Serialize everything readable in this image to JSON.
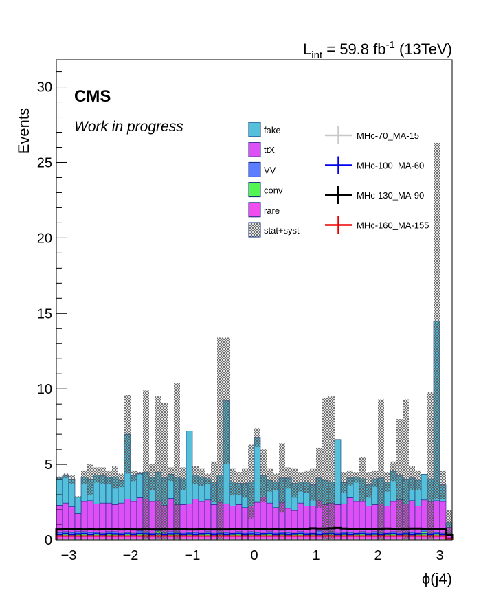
{
  "chart_data": {
    "type": "bar",
    "title": "",
    "lumi": {
      "main": "L",
      "sub": "int",
      "rest": " = 59.8 fb",
      "sup": "-1",
      "energy": " (13TeV)"
    },
    "experiment": "CMS",
    "status_text": "Work in progress",
    "xlabel": "ϕ(j4)",
    "ylabel": "Events",
    "xlim": [
      -3.2,
      3.2
    ],
    "ylim": [
      0,
      31.8
    ],
    "xticks": [
      -3,
      -2,
      -1,
      0,
      1,
      2,
      3
    ],
    "xtick_labels": [
      "−3",
      "−2",
      "−1",
      "0",
      "1",
      "2",
      "3"
    ],
    "yticks": [
      0,
      5,
      10,
      15,
      20,
      25,
      30
    ],
    "ytick_labels": [
      "0",
      "5",
      "10",
      "15",
      "20",
      "25",
      "30"
    ],
    "bins": 64,
    "stack_series": [
      {
        "name": "rare",
        "color": "#f04cf0",
        "values": [
          0.25,
          0.25,
          0.25,
          0.25,
          0.25,
          0.25,
          0.25,
          0.25,
          0.25,
          0.25,
          0.25,
          0.25,
          0.25,
          0.25,
          0.25,
          0.25,
          0.25,
          0.25,
          0.25,
          0.25,
          0.25,
          0.25,
          0.25,
          0.25,
          0.25,
          0.25,
          0.25,
          0.25,
          0.25,
          0.25,
          0.25,
          0.25,
          0.25,
          0.25,
          0.25,
          0.25,
          0.25,
          0.25,
          0.25,
          0.25,
          0.25,
          0.25,
          0.25,
          0.25,
          0.25,
          0.25,
          0.25,
          0.25,
          0.25,
          0.25,
          0.25,
          0.25,
          0.25,
          0.25,
          0.25,
          0.25,
          0.25,
          0.25,
          0.25,
          0.25,
          0.25,
          0.25,
          0.25,
          0.25
        ]
      },
      {
        "name": "conv",
        "color": "#52f552",
        "values": [
          0.1,
          0.2,
          0.15,
          0.1,
          0.2,
          0.1,
          0.15,
          0.1,
          0.2,
          0.1,
          0.1,
          0.15,
          0.1,
          0.2,
          0.15,
          0.1,
          0.35,
          0.15,
          0.1,
          0.2,
          0.1,
          0.1,
          0.15,
          0.1,
          0.2,
          0.1,
          0.1,
          0.15,
          0.1,
          0.2,
          0.1,
          0.1,
          0.15,
          0.1,
          0.2,
          0.1,
          0.1,
          0.15,
          0.1,
          0.2,
          0.1,
          0.1,
          0.15,
          0.1,
          0.2,
          0.1,
          0.1,
          0.15,
          0.1,
          0.2,
          0.1,
          0.1,
          0.15,
          0.1,
          0.2,
          0.1,
          0.1,
          0.15,
          0.1,
          0.3,
          0.1,
          0.15,
          0.1,
          0.1
        ]
      },
      {
        "name": "VV",
        "color": "#5c7dff",
        "values": [
          0.15,
          0.1,
          0.1,
          0.2,
          0.1,
          0.15,
          0.1,
          0.1,
          0.1,
          0.2,
          0.1,
          0.1,
          0.1,
          0.15,
          0.1,
          0.1,
          0.1,
          0.1,
          0.2,
          0.1,
          0.1,
          0.15,
          0.1,
          0.1,
          0.1,
          0.1,
          0.15,
          0.1,
          0.1,
          0.1,
          0.1,
          0.2,
          0.1,
          0.1,
          0.1,
          0.1,
          0.15,
          0.1,
          0.1,
          0.1,
          0.1,
          0.1,
          0.2,
          0.1,
          0.1,
          0.1,
          0.15,
          0.1,
          0.1,
          0.1,
          0.1,
          0.2,
          0.1,
          0.1,
          0.1,
          0.1,
          0.15,
          0.1,
          0.1,
          0.1,
          0.1,
          0.1,
          0.1,
          0.1
        ]
      },
      {
        "name": "ttX",
        "color": "#dc50f5",
        "values": [
          1.8,
          1.9,
          1.7,
          1.2,
          2.0,
          2.1,
          1.9,
          2.0,
          1.9,
          1.8,
          2.0,
          2.2,
          2.1,
          2.2,
          2.2,
          2.1,
          1.9,
          1.8,
          2.2,
          1.8,
          1.9,
          1.9,
          2.2,
          2.1,
          2.1,
          1.9,
          2.0,
          1.9,
          1.8,
          1.8,
          1.7,
          1.7,
          2.0,
          2.4,
          1.9,
          1.7,
          2.0,
          1.6,
          1.5,
          1.9,
          1.8,
          1.8,
          2.0,
          1.9,
          1.9,
          1.9,
          1.9,
          2.3,
          2.1,
          2.0,
          1.8,
          1.8,
          1.9,
          1.8,
          2.0,
          2.2,
          1.9,
          2.1,
          1.8,
          2.0,
          2.1,
          2.1,
          2.1,
          0.4
        ]
      },
      {
        "name": "fake",
        "color": "#55c0da",
        "values": [
          1.8,
          1.8,
          1.8,
          1.1,
          1.6,
          1.4,
          1.9,
          1.8,
          1.7,
          1.8,
          1.5,
          4.3,
          1.7,
          1.6,
          1.8,
          1.6,
          1.9,
          1.8,
          1.6,
          1.8,
          1.7,
          4.8,
          1.6,
          1.6,
          1.4,
          1.5,
          1.8,
          6.8,
          1.6,
          1.4,
          1.6,
          1.6,
          4.3,
          1.4,
          1.5,
          1.7,
          1.6,
          2.0,
          1.8,
          1.4,
          1.6,
          1.4,
          1.5,
          1.6,
          1.4,
          4.3,
          1.4,
          1.3,
          1.6,
          1.5,
          1.4,
          1.7,
          1.7,
          1.6,
          2.0,
          1.6,
          1.6,
          1.5,
          1.7,
          1.7,
          1.5,
          11.9,
          1.1,
          0.3
        ]
      }
    ],
    "stat_syst_upper": [
      4.2,
      4.4,
      4.3,
      2.9,
      4.6,
      5.0,
      4.8,
      4.8,
      4.6,
      4.9,
      4.4,
      9.6,
      4.6,
      4.5,
      9.9,
      5.0,
      9.5,
      9.1,
      4.8,
      10.4,
      4.8,
      7.2,
      4.9,
      4.7,
      4.4,
      5.2,
      13.4,
      13.4,
      4.7,
      4.5,
      4.7,
      6.3,
      7.4,
      6.0,
      4.7,
      4.4,
      6.4,
      4.8,
      4.7,
      4.5,
      4.6,
      4.7,
      6.1,
      9.4,
      9.5,
      4.7,
      4.5,
      4.6,
      4.5,
      5.5,
      4.5,
      4.6,
      9.3,
      4.5,
      5.2,
      8.0,
      9.3,
      4.9,
      4.6,
      4.3,
      9.8,
      26.3,
      4.6,
      2.0
    ],
    "signal_series": [
      {
        "name": "MHc-70_MA-15",
        "color": "#c8c8c8",
        "values": [
          0.05,
          0.05,
          0.05,
          0.05,
          0.05,
          0.05,
          0.05,
          0.05,
          0.05,
          0.05,
          0.05,
          0.05,
          0.05,
          0.05,
          0.05,
          0.05,
          0.05,
          0.05,
          0.05,
          0.05,
          0.05,
          0.05,
          0.05,
          0.05,
          0.05,
          0.05,
          0.05,
          0.05,
          0.05,
          0.05,
          0.05,
          0.05,
          0.05,
          0.05,
          0.05,
          0.05,
          0.05,
          0.05,
          0.05,
          0.05,
          0.05,
          0.05,
          0.05,
          0.05,
          0.05,
          0.05,
          0.05,
          0.05,
          0.05,
          0.05,
          0.05,
          0.05,
          0.05,
          0.05,
          0.05,
          0.05,
          0.05,
          0.05,
          0.05,
          0.05,
          0.05,
          0.05,
          0.05,
          0.05
        ]
      },
      {
        "name": "MHc-100_MA-60",
        "color": "#0000ee",
        "values": [
          0.35,
          0.4,
          0.35,
          0.4,
          0.4,
          0.35,
          0.4,
          0.35,
          0.4,
          0.4,
          0.35,
          0.4,
          0.35,
          0.4,
          0.4,
          0.35,
          0.4,
          0.35,
          0.4,
          0.4,
          0.35,
          0.4,
          0.35,
          0.4,
          0.4,
          0.35,
          0.4,
          0.35,
          0.4,
          0.4,
          0.35,
          0.4,
          0.35,
          0.4,
          0.4,
          0.35,
          0.4,
          0.35,
          0.4,
          0.4,
          0.35,
          0.4,
          0.35,
          0.4,
          0.4,
          0.35,
          0.4,
          0.35,
          0.4,
          0.4,
          0.35,
          0.4,
          0.35,
          0.4,
          0.4,
          0.35,
          0.4,
          0.35,
          0.4,
          0.4,
          0.35,
          0.4,
          0.35,
          0.1
        ]
      },
      {
        "name": "MHc-130_MA-90",
        "color": "#000000",
        "values": [
          0.7,
          0.72,
          0.75,
          0.72,
          0.7,
          0.72,
          0.7,
          0.72,
          0.74,
          0.72,
          0.7,
          0.72,
          0.7,
          0.7,
          0.72,
          0.7,
          0.7,
          0.72,
          0.7,
          0.72,
          0.72,
          0.7,
          0.7,
          0.72,
          0.7,
          0.7,
          0.7,
          0.7,
          0.72,
          0.72,
          0.74,
          0.74,
          0.72,
          0.72,
          0.7,
          0.72,
          0.7,
          0.72,
          0.72,
          0.72,
          0.75,
          0.78,
          0.76,
          0.76,
          0.78,
          0.8,
          0.76,
          0.74,
          0.74,
          0.74,
          0.74,
          0.72,
          0.74,
          0.76,
          0.74,
          0.74,
          0.74,
          0.76,
          0.76,
          0.74,
          0.74,
          0.72,
          0.74,
          0.3
        ]
      },
      {
        "name": "MHc-160_MA-155",
        "color": "#ee0000",
        "values": [
          0.25,
          0.25,
          0.25,
          0.25,
          0.25,
          0.25,
          0.25,
          0.25,
          0.25,
          0.25,
          0.25,
          0.25,
          0.25,
          0.25,
          0.25,
          0.25,
          0.25,
          0.25,
          0.25,
          0.25,
          0.25,
          0.25,
          0.25,
          0.25,
          0.25,
          0.25,
          0.25,
          0.25,
          0.25,
          0.25,
          0.25,
          0.25,
          0.25,
          0.25,
          0.25,
          0.25,
          0.25,
          0.25,
          0.25,
          0.25,
          0.25,
          0.25,
          0.25,
          0.25,
          0.25,
          0.25,
          0.25,
          0.25,
          0.25,
          0.25,
          0.25,
          0.25,
          0.25,
          0.25,
          0.25,
          0.25,
          0.25,
          0.25,
          0.25,
          0.25,
          0.25,
          0.25,
          0.25,
          0.08
        ]
      }
    ],
    "legend_left": [
      {
        "label": "fake",
        "color": "#55c0da"
      },
      {
        "label": "ttX",
        "color": "#dc50f5"
      },
      {
        "label": "VV",
        "color": "#5c7dff"
      },
      {
        "label": "conv",
        "color": "#52f552"
      },
      {
        "label": "rare",
        "color": "#f04cf0"
      },
      {
        "label": "stat+syst",
        "color": "hatch"
      }
    ],
    "legend_right": [
      {
        "label": "MHc-70_MA-15",
        "color": "#c8c8c8"
      },
      {
        "label": "MHc-100_MA-60",
        "color": "#0000ee"
      },
      {
        "label": "MHc-130_MA-90",
        "color": "#000000"
      },
      {
        "label": "MHc-160_MA-155",
        "color": "#ee0000"
      }
    ]
  }
}
